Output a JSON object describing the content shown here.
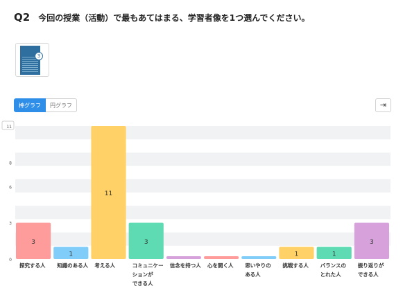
{
  "question": {
    "number": "Q2",
    "text": "今回の授業（活動）で最もあてはまる、学習者像を1つ選んでください。"
  },
  "thumbnail": {
    "icon": "document-thumbnail-icon",
    "badge": "3"
  },
  "view_toggle": {
    "bar_label": "棒グラフ",
    "pie_label": "円グラフ",
    "selected": "棒グラフ"
  },
  "export": {
    "icon": "export-arrow-icon",
    "symbol": "⇥"
  },
  "chart_data": {
    "type": "bar",
    "ylim": [
      0,
      11
    ],
    "yticks": [
      0,
      3,
      6,
      8,
      11
    ],
    "grid": true,
    "categories": [
      [
        "探究する人"
      ],
      [
        "知識のある人"
      ],
      [
        "考える人"
      ],
      [
        "コミュニケー",
        "ションが",
        "できる人"
      ],
      [
        "信念を持つ人"
      ],
      [
        "心を開く人"
      ],
      [
        "思いやりの",
        "ある人"
      ],
      [
        "挑戦する人"
      ],
      [
        "バランスの",
        "とれた人"
      ],
      [
        "振り返りが",
        "できる人"
      ]
    ],
    "values": [
      3,
      1,
      11,
      3,
      0,
      0,
      0,
      1,
      1,
      3
    ],
    "colors": [
      "#fe9c9c",
      "#7fcdf8",
      "#ffd166",
      "#5edbb2",
      "#d7a2dc",
      "#fe9c9c",
      "#7fcdf8",
      "#ffd166",
      "#5edbb2",
      "#d7a2dc"
    ]
  }
}
